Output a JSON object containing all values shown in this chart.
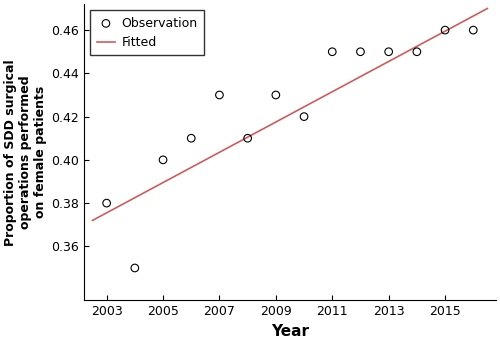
{
  "years": [
    2003,
    2004,
    2005,
    2006,
    2007,
    2008,
    2009,
    2010,
    2011,
    2012,
    2013,
    2014,
    2015,
    2016
  ],
  "proportions": [
    0.38,
    0.35,
    0.4,
    0.41,
    0.43,
    0.41,
    0.43,
    0.42,
    0.45,
    0.45,
    0.45,
    0.45,
    0.46,
    0.46
  ],
  "fit_x": [
    2002.5,
    2016.5
  ],
  "fit_y": [
    0.372,
    0.47
  ],
  "xlabel": "Year",
  "ylabel": "Proportion of SDD surgical\noperations performed\non female patients",
  "ylim": [
    0.335,
    0.472
  ],
  "yticks": [
    0.36,
    0.38,
    0.4,
    0.42,
    0.44,
    0.46
  ],
  "xticks": [
    2003,
    2005,
    2007,
    2009,
    2011,
    2013,
    2015
  ],
  "xlim": [
    2002.2,
    2016.8
  ],
  "obs_color": "black",
  "fit_color": "#cd5c5c",
  "marker_size": 5,
  "legend_obs_label": "Observation",
  "legend_fit_label": "Fitted"
}
